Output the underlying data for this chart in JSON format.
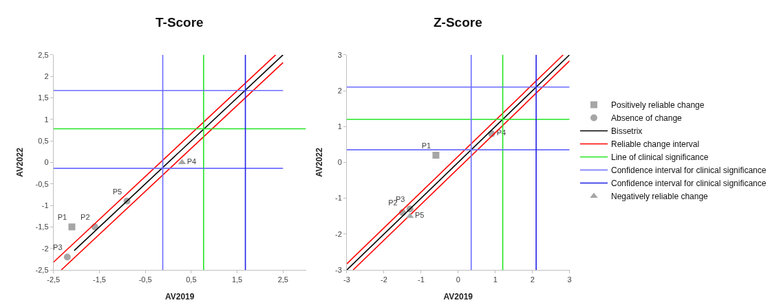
{
  "chart_data": [
    {
      "type": "scatter",
      "title": "T-Score",
      "xlabel": "AV2019",
      "ylabel": "AV2022",
      "legend": false,
      "xlim": [
        -2.5,
        3
      ],
      "ylim": [
        -2.5,
        2.5
      ],
      "xticks": [
        {
          "value": -2.5,
          "label": "-2,5"
        },
        {
          "value": -1.5,
          "label": "-1,5"
        },
        {
          "value": -0.5,
          "label": "-0,5"
        },
        {
          "value": 0.5,
          "label": "0,5"
        },
        {
          "value": 1.5,
          "label": "1,5"
        },
        {
          "value": 2.5,
          "label": "2,5"
        }
      ],
      "yticks": [
        {
          "value": -2.5,
          "label": "-2,5"
        },
        -2,
        {
          "value": -1.5,
          "label": "-1,5"
        },
        -1,
        {
          "value": -0.5,
          "label": "-0,5"
        },
        0,
        {
          "value": 0.5,
          "label": "0,5"
        },
        1,
        {
          "value": 1.5,
          "label": "1,5"
        },
        2,
        {
          "value": 2.5,
          "label": "2,5"
        }
      ],
      "series": [
        {
          "marker": "square",
          "color": "#a6a6a6",
          "x": [
            -2.1
          ],
          "values": [
            -1.5
          ],
          "value_labels": [
            "P1"
          ]
        },
        {
          "marker": "circle",
          "color": "#a6a6a6",
          "x": [
            -1.6,
            -2.2,
            -0.9
          ],
          "values": [
            -1.5,
            -2.2,
            -0.9
          ],
          "value_labels": [
            "P2",
            "P3",
            "P5"
          ]
        },
        {
          "type": "line",
          "marker": "none",
          "color": "#000000",
          "x": [
            -2.05,
            2.5
          ],
          "values": [
            -2.05,
            2.5
          ]
        },
        {
          "type": "line",
          "marker": "none",
          "color": "#ff0000",
          "x": [
            -2.5,
            2.34
          ],
          "values": [
            -2.32,
            2.5
          ]
        },
        {
          "type": "line",
          "marker": "none",
          "color": "#ff0000",
          "x": [
            -2.33,
            2.5
          ],
          "values": [
            -2.5,
            2.32
          ]
        },
        {
          "type": "line",
          "marker": "none",
          "color": "#22e622",
          "x": [
            0.77,
            0.77
          ],
          "values": [
            -2.5,
            2.5
          ]
        },
        {
          "type": "line",
          "marker": "none",
          "color": "#22e622",
          "x": [
            -2.5,
            3
          ],
          "values": [
            0.78,
            0.78
          ]
        },
        {
          "type": "line",
          "marker": "none",
          "color": "#6b6bff",
          "x": [
            -0.12,
            -0.12
          ],
          "values": [
            -2.5,
            2.5
          ]
        },
        {
          "type": "line",
          "marker": "none",
          "color": "#6b6bff",
          "x": [
            -2.5,
            2.5
          ],
          "values": [
            1.67,
            1.67
          ]
        },
        {
          "type": "line",
          "marker": "none",
          "color": "#6b6bff",
          "x": [
            -2.5,
            2.5
          ],
          "values": [
            -0.14,
            -0.14
          ]
        },
        {
          "type": "line",
          "marker": "none",
          "color": "#1f1fe6",
          "x": [
            1.68,
            1.68
          ],
          "values": [
            -2.5,
            2.5
          ]
        },
        {
          "marker": "triangle",
          "color": "#a6a6a6",
          "x": [
            0.3
          ],
          "values": [
            0.0
          ],
          "value_labels": [
            "P4"
          ]
        }
      ]
    },
    {
      "type": "scatter",
      "title": "Z-Score",
      "xlabel": "AV2019",
      "ylabel": "AV2022",
      "legend": "right",
      "xlim": [
        -3,
        3
      ],
      "ylim": [
        -3,
        3
      ],
      "xticks": [
        -3,
        -2,
        -1,
        0,
        1,
        2,
        3
      ],
      "yticks": [
        -3,
        -2,
        -1,
        0,
        1,
        2,
        3
      ],
      "series": [
        {
          "name": "Positively reliable change",
          "marker": "square",
          "color": "#a6a6a6",
          "x": [
            -0.6
          ],
          "values": [
            0.2
          ],
          "value_labels": [
            "P1"
          ]
        },
        {
          "name": "Absence of change",
          "marker": "circle",
          "color": "#a6a6a6",
          "x": [
            -1.5,
            -1.3,
            0.9
          ],
          "values": [
            -1.4,
            -1.3,
            0.8
          ],
          "value_labels": [
            "P2",
            "P3",
            "P4"
          ]
        },
        {
          "name": "Bissetrix",
          "type": "line",
          "marker": "none",
          "color": "#000000",
          "x": [
            -3,
            3
          ],
          "values": [
            -3,
            3
          ]
        },
        {
          "name": "Reliable change interval",
          "type": "line",
          "marker": "none",
          "color": "#ff0000",
          "x": [
            -3,
            2.83
          ],
          "values": [
            -2.83,
            3
          ]
        },
        {
          "type": "line",
          "marker": "none",
          "color": "#ff0000",
          "x": [
            -2.83,
            3
          ],
          "values": [
            -3,
            2.83
          ]
        },
        {
          "name": "Line of clinical significance",
          "type": "line",
          "marker": "none",
          "color": "#22e622",
          "x": [
            1.2,
            1.2
          ],
          "values": [
            -3,
            3
          ]
        },
        {
          "type": "line",
          "marker": "none",
          "color": "#22e622",
          "x": [
            -3,
            3
          ],
          "values": [
            1.2,
            1.2
          ]
        },
        {
          "name": "Confidence interval for clinical significance",
          "type": "line",
          "marker": "none",
          "color": "#6b6bff",
          "x": [
            0.35,
            0.35
          ],
          "values": [
            -3,
            3
          ]
        },
        {
          "type": "line",
          "marker": "none",
          "color": "#6b6bff",
          "x": [
            -3,
            3
          ],
          "values": [
            2.1,
            2.1
          ]
        },
        {
          "type": "line",
          "marker": "none",
          "color": "#6b6bff",
          "x": [
            -3,
            3
          ],
          "values": [
            0.35,
            0.35
          ]
        },
        {
          "name": "Confidence interval for clinical significance",
          "type": "line",
          "marker": "none",
          "color": "#1f1fe6",
          "x": [
            2.1,
            2.1
          ],
          "values": [
            -3,
            3
          ]
        },
        {
          "name": "Negatively reliable change",
          "marker": "triangle",
          "color": "#a6a6a6",
          "x": [
            -1.3
          ],
          "values": [
            -1.5
          ],
          "value_labels": [
            "P5"
          ]
        }
      ]
    }
  ]
}
